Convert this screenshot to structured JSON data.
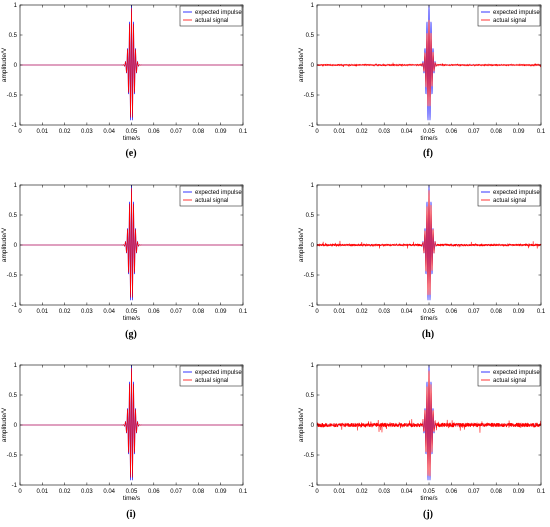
{
  "chart_data": [
    {
      "type": "line",
      "panel_label": "(e)",
      "xlabel": "time/s",
      "ylabel": "amplitude/V",
      "xlim": [
        0,
        0.1
      ],
      "ylim": [
        -1,
        1
      ],
      "xticks": [
        "0",
        "0.01",
        "0.02",
        "0.03",
        "0.04",
        "0.05",
        "0.06",
        "0.07",
        "0.08",
        "0.09",
        "0.1"
      ],
      "yticks": [
        "-1",
        "-0.5",
        "0",
        "0.5",
        "1"
      ],
      "legend_position": "top-right",
      "burst_center": 0.05,
      "series": [
        {
          "name": "expected impulse",
          "color": "#0000ff",
          "peak": 1.0,
          "noise": 0
        },
        {
          "name": "actual signal",
          "color": "#ff0000",
          "peak": 0.95,
          "noise": 0
        }
      ]
    },
    {
      "type": "line",
      "panel_label": "(f)",
      "xlabel": "time/s",
      "ylabel": "amplitude/V",
      "xlim": [
        0,
        0.1
      ],
      "ylim": [
        -1,
        1
      ],
      "xticks": [
        "0",
        "0.01",
        "0.02",
        "0.03",
        "0.04",
        "0.05",
        "0.06",
        "0.07",
        "0.08",
        "0.09",
        "0.1"
      ],
      "yticks": [
        "-1",
        "-0.5",
        "0",
        "0.5",
        "1"
      ],
      "legend_position": "top-right",
      "burst_center": 0.05,
      "series": [
        {
          "name": "expected impulse",
          "color": "#0000ff",
          "peak": 1.0,
          "noise": 0
        },
        {
          "name": "actual signal",
          "color": "#ff0000",
          "peak": 0.75,
          "noise": 0.03
        }
      ]
    },
    {
      "type": "line",
      "panel_label": "(g)",
      "xlabel": "time/s",
      "ylabel": "amplitude/V",
      "xlim": [
        0,
        0.1
      ],
      "ylim": [
        -1,
        1
      ],
      "xticks": [
        "0",
        "0.01",
        "0.02",
        "0.03",
        "0.04",
        "0.05",
        "0.06",
        "0.07",
        "0.08",
        "0.09",
        "0.1"
      ],
      "yticks": [
        "-1",
        "-0.5",
        "0",
        "0.5",
        "1"
      ],
      "legend_position": "top-right",
      "burst_center": 0.05,
      "series": [
        {
          "name": "expected impulse",
          "color": "#0000ff",
          "peak": 1.0,
          "noise": 0
        },
        {
          "name": "actual signal",
          "color": "#ff0000",
          "peak": 0.95,
          "noise": 0
        }
      ]
    },
    {
      "type": "line",
      "panel_label": "(h)",
      "xlabel": "time/s",
      "ylabel": "amplitude/V",
      "xlim": [
        0,
        0.1
      ],
      "ylim": [
        -1,
        1
      ],
      "xticks": [
        "0",
        "0.01",
        "0.02",
        "0.03",
        "0.04",
        "0.05",
        "0.06",
        "0.07",
        "0.08",
        "0.09",
        "0.1"
      ],
      "yticks": [
        "-1",
        "-0.5",
        "0",
        "0.5",
        "1"
      ],
      "legend_position": "top-right",
      "burst_center": 0.05,
      "series": [
        {
          "name": "expected impulse",
          "color": "#0000ff",
          "peak": 1.0,
          "noise": 0
        },
        {
          "name": "actual signal",
          "color": "#ff0000",
          "peak": 0.9,
          "noise": 0.05
        }
      ]
    },
    {
      "type": "line",
      "panel_label": "(i)",
      "xlabel": "time/s",
      "ylabel": "amplitude/V",
      "xlim": [
        0,
        0.1
      ],
      "ylim": [
        -1,
        1
      ],
      "xticks": [
        "0",
        "0.01",
        "0.02",
        "0.03",
        "0.04",
        "0.05",
        "0.06",
        "0.07",
        "0.08",
        "0.09",
        "0.1"
      ],
      "yticks": [
        "-1",
        "-0.5",
        "0",
        "0.5",
        "1"
      ],
      "legend_position": "top-right",
      "burst_center": 0.05,
      "series": [
        {
          "name": "expected impulse",
          "color": "#0000ff",
          "peak": 1.0,
          "noise": 0
        },
        {
          "name": "actual signal",
          "color": "#ff0000",
          "peak": 0.95,
          "noise": 0
        }
      ]
    },
    {
      "type": "line",
      "panel_label": "(j)",
      "xlabel": "time/s",
      "ylabel": "amplitude/V",
      "xlim": [
        0,
        0.1
      ],
      "ylim": [
        -1,
        1
      ],
      "xticks": [
        "0",
        "0.01",
        "0.02",
        "0.03",
        "0.04",
        "0.05",
        "0.06",
        "0.07",
        "0.08",
        "0.09",
        "0.1"
      ],
      "yticks": [
        "-1",
        "-0.5",
        "0",
        "0.5",
        "1"
      ],
      "legend_position": "top-right",
      "burst_center": 0.05,
      "series": [
        {
          "name": "expected impulse",
          "color": "#0000ff",
          "peak": 1.0,
          "noise": 0
        },
        {
          "name": "actual signal",
          "color": "#ff0000",
          "peak": 0.9,
          "noise": 0.1
        }
      ]
    }
  ]
}
